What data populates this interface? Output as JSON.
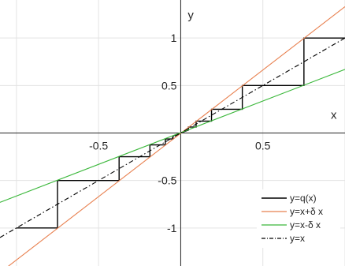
{
  "chart_data": {
    "type": "line",
    "title": "",
    "xlabel": "x",
    "ylabel": "y",
    "xlim": [
      -1.1,
      1.0
    ],
    "ylim": [
      -1.4,
      1.4
    ],
    "grid": true,
    "legend_position": "bottom-right",
    "x_ticks": [
      {
        "value": -0.5,
        "label": "-0.5"
      },
      {
        "value": 0.5,
        "label": "0.5"
      }
    ],
    "y_ticks": [
      {
        "value": 1,
        "label": "1"
      },
      {
        "value": 0.5,
        "label": "0.5"
      },
      {
        "value": -0.5,
        "label": "-0.5"
      },
      {
        "value": -1,
        "label": "-1"
      }
    ],
    "series": [
      {
        "name": "y=q(x)",
        "color": "#000000",
        "style": "solid",
        "x": [
          -1.0,
          -0.75,
          -0.75,
          -0.375,
          -0.375,
          -0.1875,
          -0.1875,
          -0.09375,
          -0.09375,
          -0.046875,
          -0.046875,
          0,
          0.046875,
          0.046875,
          0.09375,
          0.09375,
          0.1875,
          0.1875,
          0.375,
          0.375,
          0.75,
          0.75,
          1.0
        ],
        "y": [
          -1.0,
          -1.0,
          -0.5,
          -0.5,
          -0.25,
          -0.25,
          -0.125,
          -0.125,
          -0.0625,
          -0.0625,
          -0.03125,
          0,
          0.03125,
          0.0625,
          0.0625,
          0.125,
          0.125,
          0.25,
          0.25,
          0.5,
          0.5,
          1.0,
          1.0
        ]
      },
      {
        "name": "y=x+δ x",
        "color": "#e8804f",
        "style": "solid",
        "x": [
          -1.1,
          1.0
        ],
        "y": [
          -1.47,
          1.33
        ]
      },
      {
        "name": "y=x-δ x",
        "color": "#3cb83c",
        "style": "solid",
        "x": [
          -1.1,
          1.0
        ],
        "y": [
          -0.73,
          0.67
        ]
      },
      {
        "name": "y=x",
        "color": "#000000",
        "style": "dashdot",
        "x": [
          -1.1,
          1.0
        ],
        "y": [
          -1.1,
          1.0
        ]
      }
    ]
  }
}
